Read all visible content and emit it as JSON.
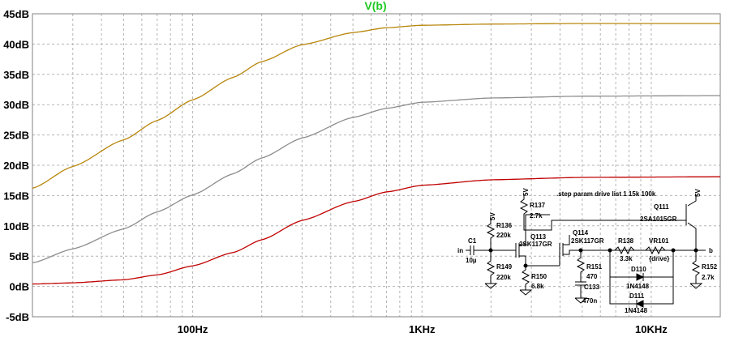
{
  "chart_data": {
    "type": "line",
    "title": "V(b)",
    "xscale": "log",
    "x_range": [
      20,
      20000
    ],
    "ylim": [
      -5,
      45
    ],
    "grid": true,
    "y_ticks": [
      {
        "value": 45,
        "label": "45dB"
      },
      {
        "value": 40,
        "label": "40dB"
      },
      {
        "value": 35,
        "label": "35dB"
      },
      {
        "value": 30,
        "label": "30dB"
      },
      {
        "value": 25,
        "label": "25dB"
      },
      {
        "value": 20,
        "label": "20dB"
      },
      {
        "value": 15,
        "label": "15dB"
      },
      {
        "value": 10,
        "label": "10dB"
      },
      {
        "value": 5,
        "label": "5dB"
      },
      {
        "value": 0,
        "label": "0dB"
      },
      {
        "value": -5,
        "label": "-5dB"
      }
    ],
    "x_ticks": [
      {
        "value": 100,
        "label": "100Hz"
      },
      {
        "value": 1000,
        "label": "1KHz"
      },
      {
        "value": 10000,
        "label": "10KHz"
      }
    ],
    "colors": {
      "title": "#22c922",
      "gold": "#b8860b",
      "gray": "#8c8c8c",
      "red": "#c00000",
      "grid": "#b4b4b4"
    },
    "series": [
      {
        "color": "#b8860b",
        "x": [
          20,
          30,
          50,
          70,
          100,
          150,
          200,
          300,
          500,
          700,
          1000,
          2000,
          5000,
          20000
        ],
        "y": [
          16.2,
          19.8,
          24.2,
          27.4,
          30.8,
          34.5,
          37.1,
          39.9,
          41.9,
          42.7,
          43.1,
          43.3,
          43.4,
          43.4
        ]
      },
      {
        "color": "#8c8c8c",
        "x": [
          20,
          30,
          50,
          70,
          100,
          150,
          200,
          300,
          500,
          700,
          1000,
          2000,
          5000,
          20000
        ],
        "y": [
          3.9,
          6.2,
          9.5,
          12.3,
          15.1,
          18.6,
          21.2,
          24.5,
          27.9,
          29.4,
          30.4,
          31.1,
          31.4,
          31.5
        ]
      },
      {
        "color": "#c00000",
        "x": [
          20,
          30,
          50,
          70,
          100,
          150,
          200,
          300,
          500,
          700,
          1000,
          2000,
          5000,
          20000
        ],
        "y": [
          0.4,
          0.6,
          1.1,
          1.9,
          3.4,
          5.6,
          7.7,
          10.9,
          14.0,
          15.6,
          16.7,
          17.6,
          18.0,
          18.1
        ]
      }
    ]
  },
  "schematic": {
    "directive": ".step param drive list 1 15k 100k",
    "labels": {
      "in": "in",
      "out": "b",
      "c1": "C1",
      "c1_val": "10µ",
      "r136": "R136",
      "r136_val": "220k",
      "r149": "R149",
      "r149_val": "220k",
      "r137": "R137",
      "r137_val": "2.7k",
      "r150": "R150",
      "r150_val": "6.8k",
      "q113": "Q113",
      "q113_part": "2SK117GR",
      "q114": "Q114",
      "q114_part": "2SK117GR",
      "r151": "R151",
      "r151_val": "470",
      "c133": "C133",
      "c133_val": "470n",
      "r138": "R138",
      "r138_val": "3.3k",
      "vr101": "VR101",
      "vr101_val": "{drive}",
      "d110": "D110",
      "d110_part": "1N4148",
      "d111": "D111",
      "d111_part": "1N4148",
      "q111": "Q111",
      "q111_part": "2SA1015GR",
      "r152": "R152",
      "r152_val": "2.7k",
      "v5": "5V"
    }
  }
}
